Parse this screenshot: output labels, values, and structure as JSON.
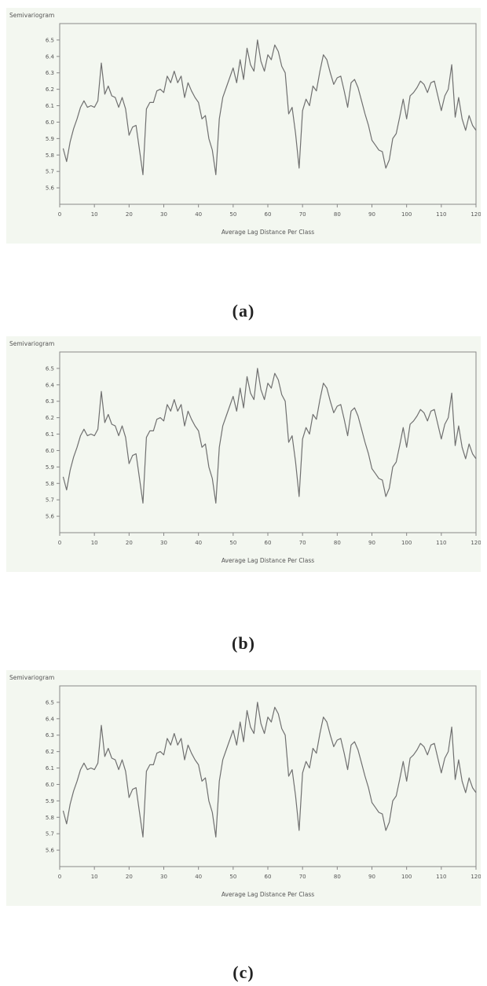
{
  "chart_data": [
    {
      "type": "line",
      "caption": "(a)",
      "xlabel": "Average Lag Distance Per Class",
      "ylabel": "Semivariogram",
      "xlim": [
        0,
        120
      ],
      "ylim": [
        5.5,
        6.6
      ],
      "xticks": [
        "0",
        "10",
        "20",
        "30",
        "40",
        "50",
        "60",
        "70",
        "80",
        "90",
        "100",
        "110",
        "120"
      ],
      "yticks": [
        "5.6",
        "5.7",
        "5.8",
        "5.9",
        "6.0",
        "6.1",
        "6.2",
        "6.3",
        "6.4",
        "6.5"
      ],
      "grid": false,
      "x": [
        1,
        2,
        3,
        4,
        5,
        6,
        7,
        8,
        9,
        10,
        11,
        12,
        13,
        14,
        15,
        16,
        17,
        18,
        19,
        20,
        21,
        22,
        23,
        24,
        25,
        26,
        27,
        28,
        29,
        30,
        31,
        32,
        33,
        34,
        35,
        36,
        37,
        38,
        39,
        40,
        41,
        42,
        43,
        44,
        45,
        46,
        47,
        48,
        49,
        50,
        51,
        52,
        53,
        54,
        55,
        56,
        57,
        58,
        59,
        60,
        61,
        62,
        63,
        64,
        65,
        66,
        67,
        68,
        69,
        70,
        71,
        72,
        73,
        74,
        75,
        76,
        77,
        78,
        79,
        80,
        81,
        82,
        83,
        84,
        85,
        86,
        87,
        88,
        89,
        90,
        91,
        92,
        93,
        94,
        95,
        96,
        97,
        98,
        99,
        100,
        101,
        102,
        103,
        104,
        105,
        106,
        107,
        108,
        109,
        110,
        111,
        112,
        113,
        114,
        115,
        116,
        117,
        118,
        119,
        120
      ],
      "values": [
        5.84,
        5.76,
        5.88,
        5.96,
        6.02,
        6.09,
        6.13,
        6.09,
        6.1,
        6.09,
        6.13,
        6.36,
        6.17,
        6.22,
        6.16,
        6.15,
        6.09,
        6.15,
        6.08,
        5.92,
        5.97,
        5.98,
        5.83,
        5.68,
        6.08,
        6.12,
        6.12,
        6.19,
        6.2,
        6.18,
        6.28,
        6.24,
        6.31,
        6.24,
        6.28,
        6.15,
        6.24,
        6.19,
        6.15,
        6.12,
        6.02,
        6.04,
        5.9,
        5.83,
        5.68,
        6.02,
        6.15,
        6.21,
        6.27,
        6.33,
        6.24,
        6.38,
        6.26,
        6.45,
        6.35,
        6.31,
        6.5,
        6.37,
        6.31,
        6.41,
        6.38,
        6.47,
        6.43,
        6.34,
        6.3,
        6.05,
        6.09,
        5.93,
        5.72,
        6.07,
        6.14,
        6.1,
        6.22,
        6.19,
        6.31,
        6.41,
        6.38,
        6.3,
        6.23,
        6.27,
        6.28,
        6.19,
        6.09,
        6.24,
        6.26,
        6.21,
        6.13,
        6.05,
        5.98,
        5.89,
        5.86,
        5.83,
        5.82,
        5.72,
        5.77,
        5.9,
        5.93,
        6.03,
        6.14,
        6.02,
        6.16,
        6.18,
        6.21,
        6.25,
        6.23,
        6.18,
        6.24,
        6.25,
        6.16,
        6.07,
        6.16,
        6.2,
        6.35,
        6.03,
        6.15,
        6.02,
        5.95,
        6.04,
        5.98,
        5.95
      ]
    },
    {
      "type": "line",
      "caption": "(b)",
      "xlabel": "Average Lag Distance Per Class",
      "ylabel": "Semivariogram",
      "xlim": [
        0,
        120
      ],
      "ylim": [
        5.5,
        6.6
      ],
      "xticks": [
        "0",
        "10",
        "20",
        "30",
        "40",
        "50",
        "60",
        "70",
        "80",
        "90",
        "100",
        "110",
        "120"
      ],
      "yticks": [
        "5.6",
        "5.7",
        "5.8",
        "5.9",
        "6.0",
        "6.1",
        "6.2",
        "6.3",
        "6.4",
        "6.5"
      ],
      "grid": false,
      "x": [
        1,
        2,
        3,
        4,
        5,
        6,
        7,
        8,
        9,
        10,
        11,
        12,
        13,
        14,
        15,
        16,
        17,
        18,
        19,
        20,
        21,
        22,
        23,
        24,
        25,
        26,
        27,
        28,
        29,
        30,
        31,
        32,
        33,
        34,
        35,
        36,
        37,
        38,
        39,
        40,
        41,
        42,
        43,
        44,
        45,
        46,
        47,
        48,
        49,
        50,
        51,
        52,
        53,
        54,
        55,
        56,
        57,
        58,
        59,
        60,
        61,
        62,
        63,
        64,
        65,
        66,
        67,
        68,
        69,
        70,
        71,
        72,
        73,
        74,
        75,
        76,
        77,
        78,
        79,
        80,
        81,
        82,
        83,
        84,
        85,
        86,
        87,
        88,
        89,
        90,
        91,
        92,
        93,
        94,
        95,
        96,
        97,
        98,
        99,
        100,
        101,
        102,
        103,
        104,
        105,
        106,
        107,
        108,
        109,
        110,
        111,
        112,
        113,
        114,
        115,
        116,
        117,
        118,
        119,
        120
      ],
      "values": [
        5.84,
        5.76,
        5.88,
        5.96,
        6.02,
        6.09,
        6.13,
        6.09,
        6.1,
        6.09,
        6.13,
        6.36,
        6.17,
        6.22,
        6.16,
        6.15,
        6.09,
        6.15,
        6.08,
        5.92,
        5.97,
        5.98,
        5.83,
        5.68,
        6.08,
        6.12,
        6.12,
        6.19,
        6.2,
        6.18,
        6.28,
        6.24,
        6.31,
        6.24,
        6.28,
        6.15,
        6.24,
        6.19,
        6.15,
        6.12,
        6.02,
        6.04,
        5.9,
        5.83,
        5.68,
        6.02,
        6.15,
        6.21,
        6.27,
        6.33,
        6.24,
        6.38,
        6.26,
        6.45,
        6.35,
        6.31,
        6.5,
        6.37,
        6.31,
        6.41,
        6.38,
        6.47,
        6.43,
        6.34,
        6.3,
        6.05,
        6.09,
        5.93,
        5.72,
        6.07,
        6.14,
        6.1,
        6.22,
        6.19,
        6.31,
        6.41,
        6.38,
        6.3,
        6.23,
        6.27,
        6.28,
        6.19,
        6.09,
        6.24,
        6.26,
        6.21,
        6.13,
        6.05,
        5.98,
        5.89,
        5.86,
        5.83,
        5.82,
        5.72,
        5.77,
        5.9,
        5.93,
        6.03,
        6.14,
        6.02,
        6.16,
        6.18,
        6.21,
        6.25,
        6.23,
        6.18,
        6.24,
        6.25,
        6.16,
        6.07,
        6.16,
        6.2,
        6.35,
        6.03,
        6.15,
        6.02,
        5.95,
        6.04,
        5.98,
        5.95
      ]
    },
    {
      "type": "line",
      "caption": "(c)",
      "xlabel": "Average Lag Distance Per Class",
      "ylabel": "Semivariogram",
      "xlim": [
        0,
        120
      ],
      "ylim": [
        5.5,
        6.6
      ],
      "xticks": [
        "0",
        "10",
        "20",
        "30",
        "40",
        "50",
        "60",
        "70",
        "80",
        "90",
        "100",
        "110",
        "120"
      ],
      "yticks": [
        "5.6",
        "5.7",
        "5.8",
        "5.9",
        "6.0",
        "6.1",
        "6.2",
        "6.3",
        "6.4",
        "6.5"
      ],
      "grid": false,
      "x": [
        1,
        2,
        3,
        4,
        5,
        6,
        7,
        8,
        9,
        10,
        11,
        12,
        13,
        14,
        15,
        16,
        17,
        18,
        19,
        20,
        21,
        22,
        23,
        24,
        25,
        26,
        27,
        28,
        29,
        30,
        31,
        32,
        33,
        34,
        35,
        36,
        37,
        38,
        39,
        40,
        41,
        42,
        43,
        44,
        45,
        46,
        47,
        48,
        49,
        50,
        51,
        52,
        53,
        54,
        55,
        56,
        57,
        58,
        59,
        60,
        61,
        62,
        63,
        64,
        65,
        66,
        67,
        68,
        69,
        70,
        71,
        72,
        73,
        74,
        75,
        76,
        77,
        78,
        79,
        80,
        81,
        82,
        83,
        84,
        85,
        86,
        87,
        88,
        89,
        90,
        91,
        92,
        93,
        94,
        95,
        96,
        97,
        98,
        99,
        100,
        101,
        102,
        103,
        104,
        105,
        106,
        107,
        108,
        109,
        110,
        111,
        112,
        113,
        114,
        115,
        116,
        117,
        118,
        119,
        120
      ],
      "values": [
        5.84,
        5.76,
        5.88,
        5.96,
        6.02,
        6.09,
        6.13,
        6.09,
        6.1,
        6.09,
        6.13,
        6.36,
        6.17,
        6.22,
        6.16,
        6.15,
        6.09,
        6.15,
        6.08,
        5.92,
        5.97,
        5.98,
        5.83,
        5.68,
        6.08,
        6.12,
        6.12,
        6.19,
        6.2,
        6.18,
        6.28,
        6.24,
        6.31,
        6.24,
        6.28,
        6.15,
        6.24,
        6.19,
        6.15,
        6.12,
        6.02,
        6.04,
        5.9,
        5.83,
        5.68,
        6.02,
        6.15,
        6.21,
        6.27,
        6.33,
        6.24,
        6.38,
        6.26,
        6.45,
        6.35,
        6.31,
        6.5,
        6.37,
        6.31,
        6.41,
        6.38,
        6.47,
        6.43,
        6.34,
        6.3,
        6.05,
        6.09,
        5.93,
        5.72,
        6.07,
        6.14,
        6.1,
        6.22,
        6.19,
        6.31,
        6.41,
        6.38,
        6.3,
        6.23,
        6.27,
        6.28,
        6.19,
        6.09,
        6.24,
        6.26,
        6.21,
        6.13,
        6.05,
        5.98,
        5.89,
        5.86,
        5.83,
        5.82,
        5.72,
        5.77,
        5.9,
        5.93,
        6.03,
        6.14,
        6.02,
        6.16,
        6.18,
        6.21,
        6.25,
        6.23,
        6.18,
        6.24,
        6.25,
        6.16,
        6.07,
        6.16,
        6.2,
        6.35,
        6.03,
        6.15,
        6.02,
        5.95,
        6.04,
        5.98,
        5.95
      ]
    }
  ],
  "style": {
    "background": "#f3f7f0",
    "line": "#707070",
    "axis": "#888888",
    "text": "#555555"
  }
}
